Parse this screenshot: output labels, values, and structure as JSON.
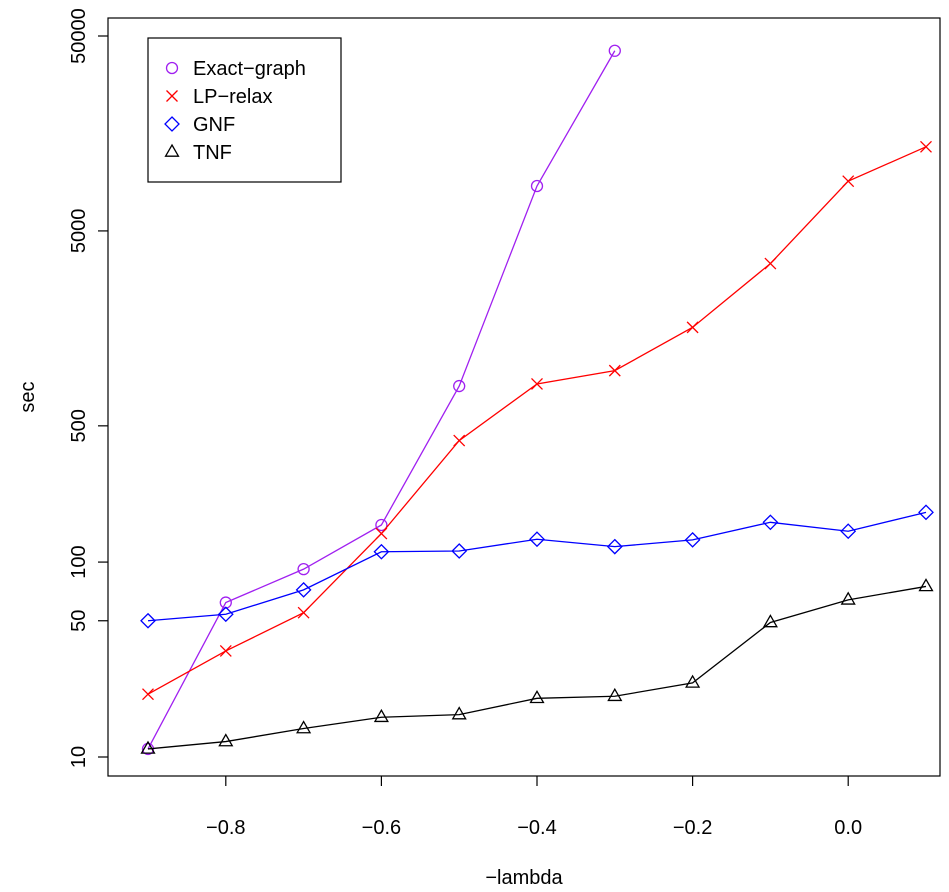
{
  "chart_data": {
    "type": "line",
    "title": "",
    "xlabel": "−lambda",
    "ylabel": "sec",
    "y_scale": "log",
    "xlim": [
      -0.9,
      0.1
    ],
    "ylim": [
      10,
      50000
    ],
    "grid": false,
    "legend_position": "top-left",
    "x_ticks": [
      -0.8,
      -0.6,
      -0.4,
      -0.2,
      0.0
    ],
    "x_tick_labels": [
      "−0.8",
      "−0.6",
      "−0.4",
      "−0.2",
      "0.0"
    ],
    "y_ticks": [
      10,
      50,
      100,
      500,
      5000,
      50000
    ],
    "y_tick_labels": [
      "10",
      "50",
      "100",
      "500",
      "5000",
      "50000"
    ],
    "series": [
      {
        "name": "Exact−graph",
        "color": "#a020f0",
        "marker": "circle",
        "x": [
          -0.9,
          -0.8,
          -0.7,
          -0.6,
          -0.5,
          -0.4,
          -0.3
        ],
        "y": [
          11,
          62,
          92,
          155,
          800,
          8500,
          42000
        ]
      },
      {
        "name": "LP−relax",
        "color": "#ff0000",
        "marker": "cross",
        "x": [
          -0.9,
          -0.8,
          -0.7,
          -0.6,
          -0.5,
          -0.4,
          -0.3,
          -0.2,
          -0.1,
          0.0,
          0.1
        ],
        "y": [
          21,
          35,
          55,
          140,
          420,
          820,
          960,
          1600,
          3400,
          9000,
          13500
        ]
      },
      {
        "name": "GNF",
        "color": "#0000ff",
        "marker": "diamond",
        "x": [
          -0.9,
          -0.8,
          -0.7,
          -0.6,
          -0.5,
          -0.4,
          -0.3,
          -0.2,
          -0.1,
          0.0,
          0.1
        ],
        "y": [
          50,
          54,
          72,
          113,
          114,
          131,
          120,
          130,
          160,
          144,
          180
        ]
      },
      {
        "name": "TNF",
        "color": "#000000",
        "marker": "triangle",
        "x": [
          -0.9,
          -0.8,
          -0.7,
          -0.6,
          -0.5,
          -0.4,
          -0.3,
          -0.2,
          -0.1,
          0.0,
          0.1
        ],
        "y": [
          11,
          12,
          14,
          16,
          16.5,
          20,
          20.5,
          24,
          49,
          64,
          75
        ]
      }
    ]
  }
}
